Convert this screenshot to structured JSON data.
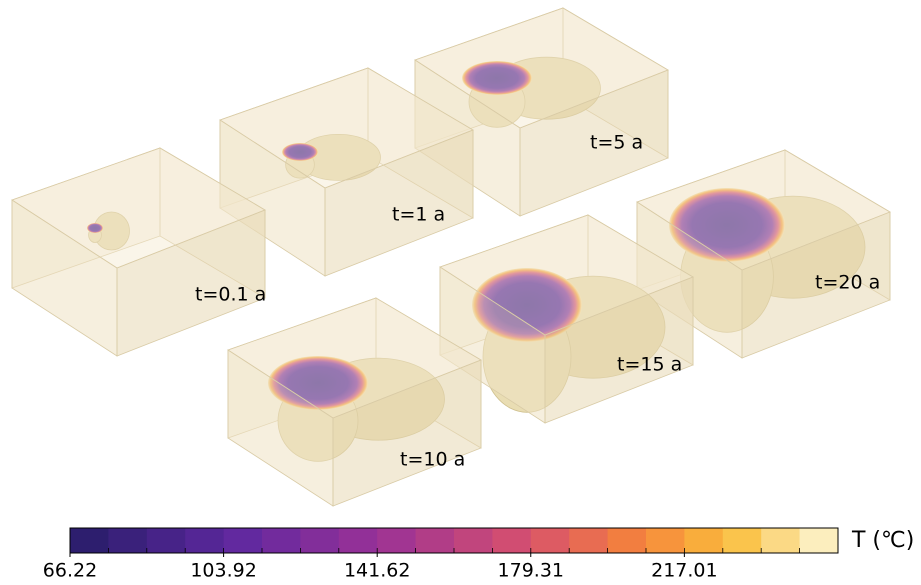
{
  "panels": [
    {
      "label": "t=0.1 a"
    },
    {
      "label": "t=1 a"
    },
    {
      "label": "t=5 a"
    },
    {
      "label": "t=10 a"
    },
    {
      "label": "t=15 a"
    },
    {
      "label": "t=20 a"
    }
  ],
  "colorbar": {
    "label": "T (℃)",
    "lim": [
      66.22,
      254.72
    ],
    "ticks": [
      66.22,
      103.92,
      141.62,
      179.31,
      217.01
    ],
    "segments": 20
  }
}
